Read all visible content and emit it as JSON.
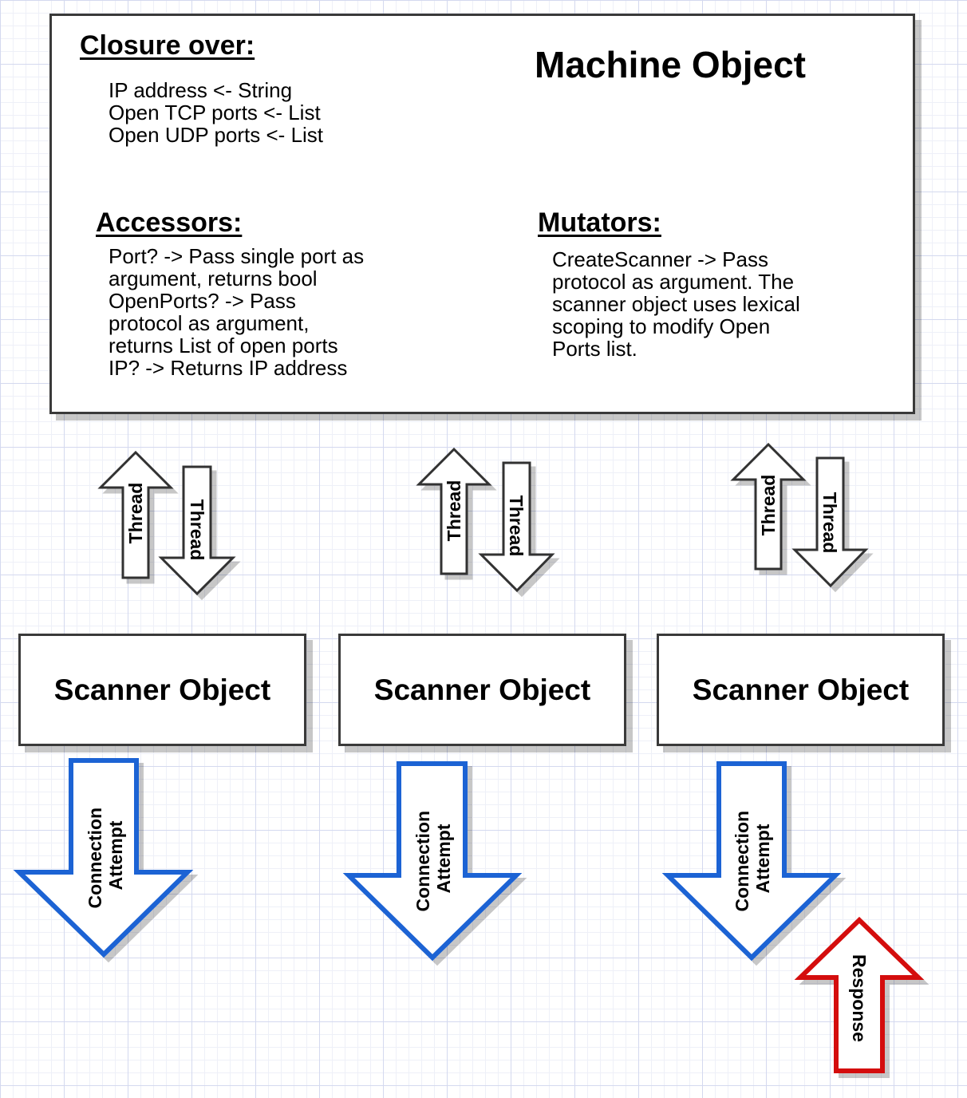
{
  "machine": {
    "title": "Machine Object",
    "closure": {
      "heading": "Closure over:",
      "lines": "IP address <- String\nOpen TCP ports <- List\nOpen UDP ports <- List"
    },
    "accessors": {
      "heading": "Accessors:",
      "lines": "Port? -> Pass single port as\nargument, returns bool\nOpenPorts? -> Pass\nprotocol as argument,\nreturns List of open ports\nIP? -> Returns IP address"
    },
    "mutators": {
      "heading": "Mutators:",
      "lines": "CreateScanner -> Pass\nprotocol as argument. The\nscanner object uses lexical\nscoping to modify Open\nPorts list."
    }
  },
  "thread_label": "Thread",
  "scanners": [
    {
      "label": "Scanner Object"
    },
    {
      "label": "Scanner Object"
    },
    {
      "label": "Scanner Object"
    }
  ],
  "connection": {
    "line1": "Connection",
    "line2": "Attempt"
  },
  "response_label": "Response",
  "colors": {
    "box_border": "#3a3a3a",
    "connection_arrow": "#1f63d4",
    "response_arrow": "#d40f0f",
    "thread_arrow": "#333333"
  }
}
